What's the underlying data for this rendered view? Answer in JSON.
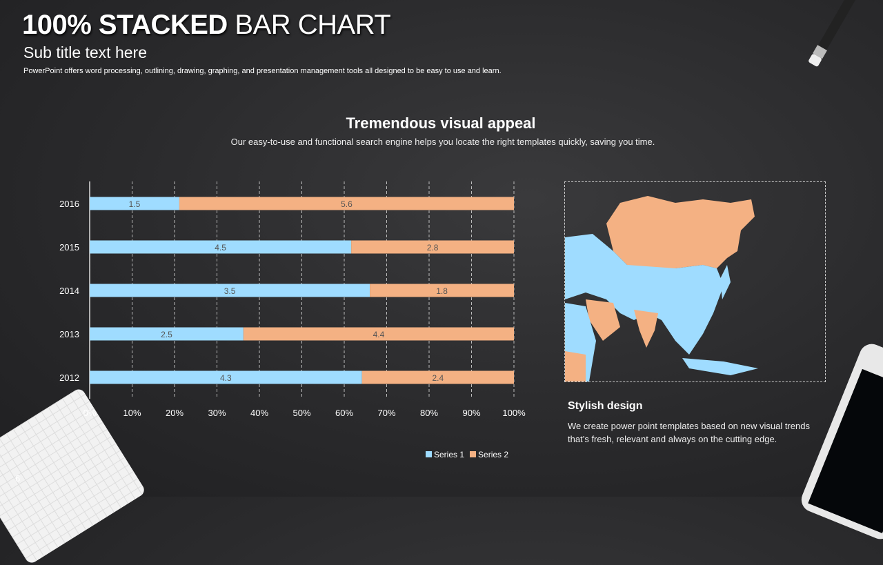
{
  "header": {
    "title_bold": "100% STACKED",
    "title_light": "BAR CHART",
    "subtitle": "Sub title text here",
    "description": "PowerPoint offers word processing, outlining, drawing, graphing, and presentation management  tools all designed to be easy to use and learn."
  },
  "section": {
    "title": "Tremendous visual appeal",
    "description": "Our easy-to-use and functional search engine helps you locate the right templates quickly, saving you time."
  },
  "side": {
    "title": "Stylish design",
    "text": "We create power point templates based on new visual trends that’s fresh, relevant and always on the cutting edge."
  },
  "page_number": "6",
  "chart_data": {
    "type": "bar",
    "stacking": "percent",
    "orientation": "horizontal",
    "categories": [
      "2016",
      "2015",
      "2014",
      "2013",
      "2012"
    ],
    "series": [
      {
        "name": "Series 1",
        "color": "#9fdcff",
        "values": [
          1.5,
          4.5,
          3.5,
          2.5,
          4.3
        ]
      },
      {
        "name": "Series 2",
        "color": "#f4b183",
        "values": [
          5.6,
          2.8,
          1.8,
          4.4,
          2.4
        ]
      }
    ],
    "x_ticks": [
      "0%",
      "10%",
      "20%",
      "30%",
      "40%",
      "50%",
      "60%",
      "70%",
      "80%",
      "90%",
      "100%"
    ],
    "xlim": [
      0,
      100
    ],
    "grid": "vertical dashed",
    "legend": "bottom-right"
  },
  "map": {
    "highlight_colors": {
      "primary": "#f4b183",
      "secondary": "#9fdcff"
    }
  }
}
